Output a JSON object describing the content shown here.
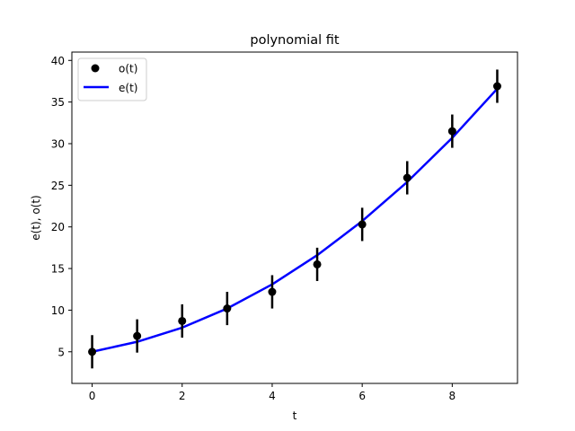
{
  "chart_data": {
    "type": "line",
    "title": "polynomial fit",
    "xlabel": "t",
    "ylabel": "e(t), o(t)",
    "xlim": [
      -0.45,
      9.45
    ],
    "ylim": [
      1.2,
      41.0
    ],
    "xticks": [
      0,
      2,
      4,
      6,
      8
    ],
    "yticks": [
      5,
      10,
      15,
      20,
      25,
      30,
      35,
      40
    ],
    "grid": false,
    "legend_placement": "top-left",
    "series": [
      {
        "name": "o(t)",
        "kind": "errorbar-points",
        "color": "#000000",
        "x": [
          0,
          1,
          2,
          3,
          4,
          5,
          6,
          7,
          8,
          9
        ],
        "y": [
          5.0,
          6.9,
          8.7,
          10.2,
          12.2,
          15.5,
          20.3,
          25.9,
          31.5,
          36.9
        ],
        "yerr": [
          2.0,
          2.0,
          2.0,
          2.0,
          2.0,
          2.0,
          2.0,
          2.0,
          2.0,
          2.0
        ]
      },
      {
        "name": "e(t)",
        "kind": "line",
        "color": "#0000ff",
        "x": [
          0,
          1,
          2,
          3,
          4,
          5,
          6,
          7,
          8,
          9
        ],
        "y": [
          5.0,
          6.2,
          7.9,
          10.2,
          13.1,
          16.6,
          20.7,
          25.4,
          30.7,
          36.6
        ]
      }
    ]
  }
}
